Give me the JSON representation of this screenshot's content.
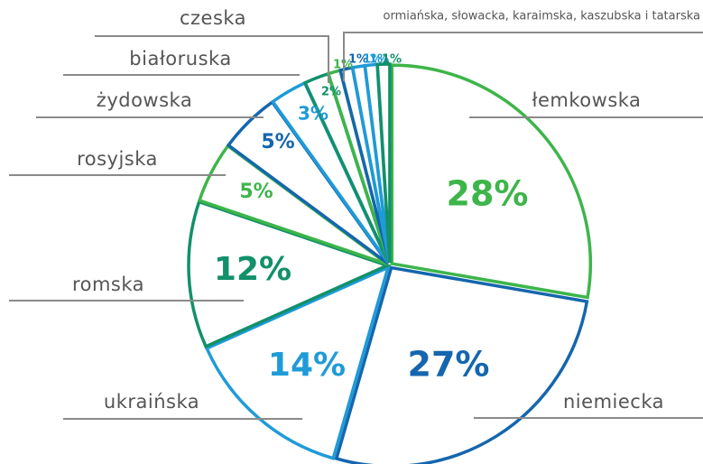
{
  "chart_data": {
    "type": "pie",
    "categories": [
      "łemkowska",
      "niemiecka",
      "ukraińska",
      "romska",
      "rosyjska",
      "żydowska",
      "białoruska",
      "czeska",
      "ormiańska, słowacka, karaimska, kaszubska i tatarska",
      null,
      null,
      null,
      null
    ],
    "values": [
      28,
      27,
      14,
      12,
      5,
      5,
      3,
      2,
      1,
      1,
      1,
      1,
      1
    ],
    "value_labels": [
      "28%",
      "27%",
      "14%",
      "12%",
      "5%",
      "5%",
      "3%",
      "2%",
      "1%",
      "1%",
      "1%",
      "1%",
      "1%"
    ],
    "colors": [
      "#3db54a",
      "#1466ae",
      "#1f9bd7",
      "#12906a",
      "#3db54a",
      "#1466ae",
      "#1f9bd7",
      "#12906a",
      "#3db54a",
      "#1466ae",
      "#1f9bd7",
      "#1f9bd7",
      "#12906a"
    ],
    "start_angle": 0,
    "direction": "clockwise"
  }
}
